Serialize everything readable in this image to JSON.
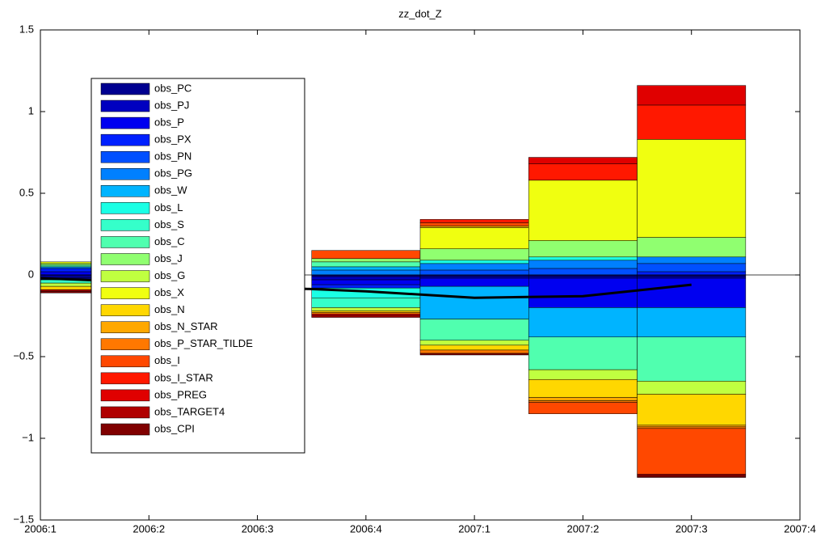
{
  "chart_data": {
    "type": "stacked_bar",
    "title": "zz_dot_Z",
    "categories": [
      "2006:1",
      "2006:2",
      "2006:3",
      "2006:4",
      "2007:1",
      "2007:2",
      "2007:3",
      "2007:4"
    ],
    "series": [
      {
        "name": "obs_PC",
        "color": "#000090",
        "values": [
          -0.02,
          null,
          null,
          -0.01,
          -0.01,
          -0.01,
          -0.01,
          null
        ]
      },
      {
        "name": "obs_PJ",
        "color": "#0000c0",
        "values": [
          -0.01,
          null,
          null,
          -0.02,
          -0.01,
          -0.01,
          -0.01,
          null
        ]
      },
      {
        "name": "obs_P",
        "color": "#0000f0",
        "values": [
          0.02,
          null,
          null,
          -0.03,
          -0.05,
          -0.18,
          -0.18,
          null
        ]
      },
      {
        "name": "obs_PX",
        "color": "#0020ff",
        "values": [
          0.02,
          null,
          null,
          -0.02,
          0,
          0,
          0.02,
          null
        ]
      },
      {
        "name": "obs_PN",
        "color": "#0050ff",
        "values": [
          0,
          null,
          null,
          0,
          0.03,
          0.04,
          0.05,
          null
        ]
      },
      {
        "name": "obs_PG",
        "color": "#0080ff",
        "values": [
          0.01,
          null,
          null,
          0.03,
          0.04,
          0.05,
          0.04,
          null
        ]
      },
      {
        "name": "obs_W",
        "color": "#00b4ff",
        "values": [
          0,
          null,
          null,
          0.02,
          -0.2,
          -0.18,
          -0.18,
          null
        ]
      },
      {
        "name": "obs_L",
        "color": "#1affe5",
        "values": [
          0,
          null,
          null,
          -0.06,
          0.02,
          0.02,
          0,
          null
        ]
      },
      {
        "name": "obs_S",
        "color": "#35ffca",
        "values": [
          -0.02,
          null,
          null,
          -0.06,
          0,
          0,
          0,
          null
        ]
      },
      {
        "name": "obs_C",
        "color": "#50ffaf",
        "values": [
          0.01,
          null,
          null,
          0.03,
          -0.13,
          -0.2,
          -0.27,
          null
        ]
      },
      {
        "name": "obs_J",
        "color": "#90ff70",
        "values": [
          0.01,
          null,
          null,
          0.02,
          0.07,
          0.1,
          0.12,
          null
        ]
      },
      {
        "name": "obs_G",
        "color": "#c0ff40",
        "values": [
          -0.02,
          null,
          null,
          -0.02,
          -0.03,
          -0.06,
          -0.08,
          null
        ]
      },
      {
        "name": "obs_X",
        "color": "#f0ff10",
        "values": [
          0.01,
          null,
          null,
          0,
          0.13,
          0.37,
          0.6,
          null
        ]
      },
      {
        "name": "obs_N",
        "color": "#ffd700",
        "values": [
          -0.02,
          null,
          null,
          -0.01,
          -0.03,
          -0.11,
          -0.19,
          null
        ]
      },
      {
        "name": "obs_N_STAR",
        "color": "#ffa800",
        "values": [
          0,
          null,
          null,
          0,
          0.01,
          -0.02,
          -0.01,
          null
        ]
      },
      {
        "name": "obs_P_STAR_TILDE",
        "color": "#ff7800",
        "values": [
          0,
          null,
          null,
          -0.01,
          -0.02,
          -0.01,
          -0.01,
          null
        ]
      },
      {
        "name": "obs_I",
        "color": "#ff4800",
        "values": [
          0,
          null,
          null,
          0.05,
          0.02,
          -0.07,
          -0.28,
          null
        ]
      },
      {
        "name": "obs_I_STAR",
        "color": "#ff1800",
        "values": [
          0,
          null,
          null,
          0,
          0.02,
          0.1,
          0.21,
          null
        ]
      },
      {
        "name": "obs_PREG",
        "color": "#e00000",
        "values": [
          0,
          null,
          null,
          -0.01,
          0,
          0.04,
          0.12,
          null
        ]
      },
      {
        "name": "obs_TARGET4",
        "color": "#b00000",
        "values": [
          -0.01,
          null,
          null,
          -0.01,
          0,
          0,
          -0.01,
          null
        ]
      },
      {
        "name": "obs_CPI",
        "color": "#800000",
        "values": [
          -0.01,
          null,
          null,
          0,
          -0.01,
          0,
          -0.01,
          null
        ]
      }
    ],
    "line": {
      "color": "#000000",
      "values": [
        -0.02,
        -0.046,
        -0.073,
        -0.1,
        -0.14,
        -0.13,
        -0.06,
        null
      ]
    },
    "ylim": [
      -1.5,
      1.5
    ],
    "yticks": [
      {
        "value": -1.5,
        "label": "−1.5"
      },
      {
        "value": -1,
        "label": "−1"
      },
      {
        "value": -0.5,
        "label": "−0.5"
      },
      0,
      0.5,
      1,
      1.5
    ],
    "grid": false,
    "legend": "upper left"
  }
}
